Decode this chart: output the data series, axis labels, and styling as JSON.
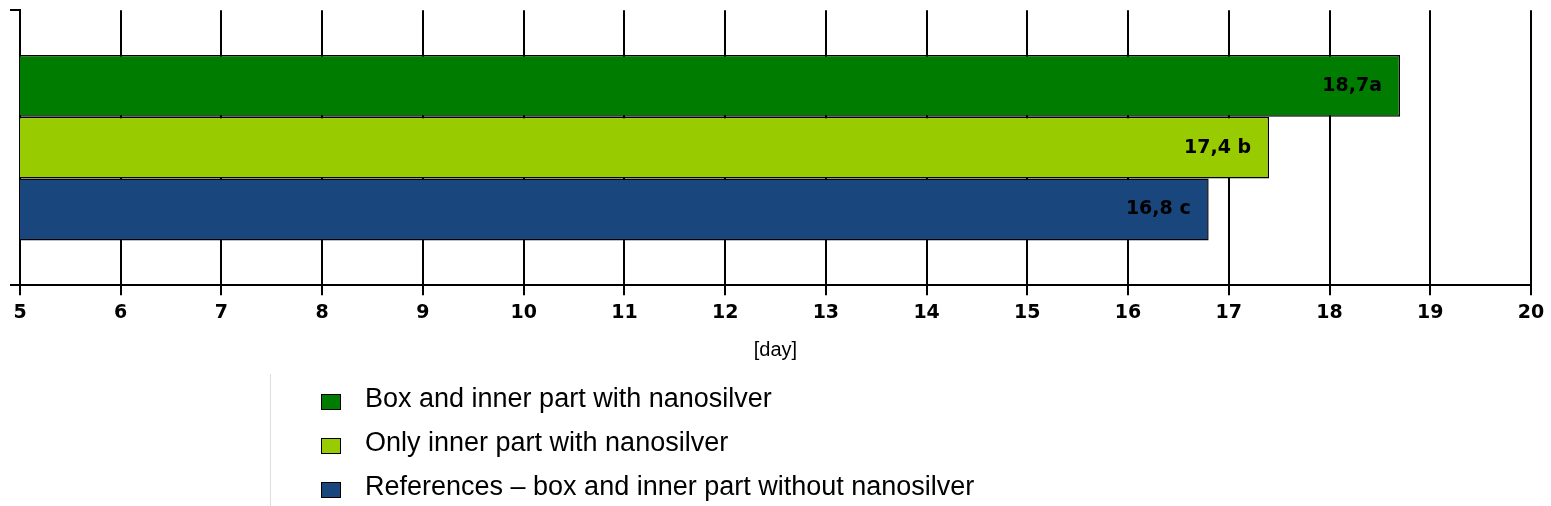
{
  "chart_data": {
    "type": "bar",
    "orientation": "horizontal",
    "xlabel": "[day]",
    "categories": [
      null
    ],
    "series": [
      {
        "name": "Box and inner part with nanosilver",
        "color": "#007c00",
        "values": [
          18.7
        ],
        "value_labels": [
          "18,7a"
        ]
      },
      {
        "name": "Only inner part with nanosilver",
        "color": "#99cc00",
        "values": [
          17.4
        ],
        "value_labels": [
          "17,4 b"
        ]
      },
      {
        "name": "References – box and inner part without nanosilver",
        "color": "#19467c",
        "values": [
          16.8
        ],
        "value_labels": [
          "16,8 c"
        ]
      }
    ],
    "xlim": [
      5,
      20
    ],
    "xticks": [
      5,
      6,
      7,
      8,
      9,
      10,
      11,
      12,
      13,
      14,
      15,
      16,
      17,
      18,
      19,
      20
    ],
    "grid": "x",
    "legend": "bottom"
  }
}
